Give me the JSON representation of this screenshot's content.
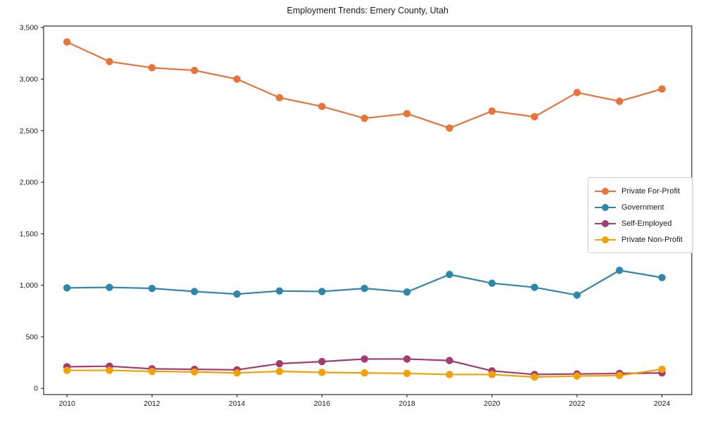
{
  "chart_data": {
    "type": "line",
    "title": "Employment Trends: Emery County, Utah",
    "xlabel": "",
    "ylabel": "",
    "grid": false,
    "legend_position": "center-right",
    "x": [
      2010,
      2011,
      2012,
      2013,
      2014,
      2015,
      2016,
      2017,
      2018,
      2019,
      2020,
      2021,
      2022,
      2023,
      2024
    ],
    "x_ticks": [
      2010,
      2012,
      2014,
      2016,
      2018,
      2020,
      2022,
      2024
    ],
    "x_tick_labels": [
      "2010",
      "2012",
      "2014",
      "2016",
      "2018",
      "2020",
      "2022",
      "2024"
    ],
    "y_ticks": [
      0,
      500,
      1000,
      1500,
      2000,
      2500,
      3000,
      3500
    ],
    "y_tick_labels": [
      "0",
      "500",
      "1,000",
      "1,500",
      "2,000",
      "2,500",
      "3,000",
      "3,500"
    ],
    "xlim": [
      2009.45,
      2024.7
    ],
    "ylim": [
      -60,
      3515
    ],
    "series": [
      {
        "name": "Private For-Profit",
        "color": "#E8743B",
        "values": [
          3360,
          3170,
          3110,
          3085,
          3000,
          2820,
          2735,
          2620,
          2665,
          2525,
          2690,
          2635,
          2870,
          2785,
          2905
        ]
      },
      {
        "name": "Government",
        "color": "#2E86AB",
        "values": [
          975,
          980,
          970,
          940,
          915,
          945,
          940,
          970,
          935,
          1105,
          1020,
          980,
          905,
          1145,
          1075
        ]
      },
      {
        "name": "Self-Employed",
        "color": "#A23B72",
        "values": [
          210,
          215,
          190,
          185,
          180,
          240,
          260,
          285,
          285,
          270,
          170,
          135,
          140,
          145,
          150
        ]
      },
      {
        "name": "Private Non-Profit",
        "color": "#F5A002",
        "values": [
          175,
          175,
          165,
          160,
          150,
          165,
          155,
          150,
          145,
          135,
          135,
          110,
          120,
          125,
          185
        ]
      }
    ]
  }
}
